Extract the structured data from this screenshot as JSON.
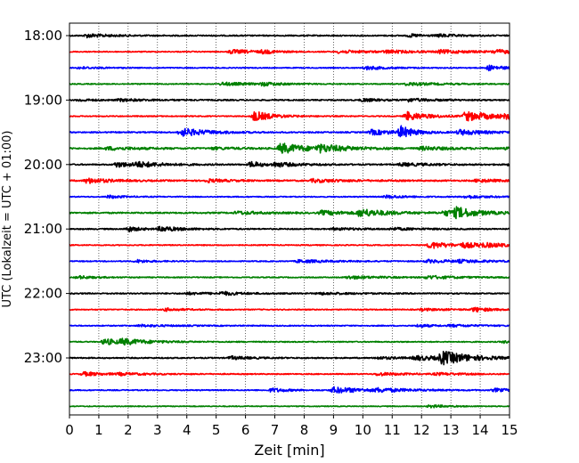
{
  "chart_data": {
    "type": "line",
    "title": "",
    "xlabel": "Zeit  [min]",
    "ylabel": "UTC (Lokalzeit = UTC + 01:00)",
    "xlim": [
      0,
      15
    ],
    "x_ticks": [
      "0",
      "1",
      "2",
      "3",
      "4",
      "5",
      "6",
      "7",
      "8",
      "9",
      "10",
      "11",
      "12",
      "13",
      "14",
      "15"
    ],
    "y_tick_labels": [
      "18:00",
      "19:00",
      "20:00",
      "21:00",
      "22:00",
      "23:00"
    ],
    "y_tick_rows": [
      0,
      4,
      8,
      12,
      16,
      20
    ],
    "row_count": 24,
    "row_interval_min": 15,
    "x_grid": true,
    "colors": [
      "#000000",
      "#ff0000",
      "#0000ff",
      "#008000"
    ],
    "series": [
      {
        "start": "18:00",
        "color": "#000000",
        "noise": 0.12,
        "bursts": [
          [
            0.6,
            3.5,
            0.35
          ],
          [
            11.6,
            6,
            0.3
          ],
          [
            12.6,
            4,
            0.25
          ]
        ]
      },
      {
        "start": "18:15",
        "color": "#ff0000",
        "noise": 0.1,
        "bursts": [
          [
            5.5,
            3,
            0.4
          ],
          [
            6.6,
            7,
            0.3
          ],
          [
            9.2,
            2.5,
            0.3
          ],
          [
            10.8,
            2.5,
            0.25
          ],
          [
            12.6,
            2.5,
            0.3
          ],
          [
            14.5,
            2.5,
            0.35
          ]
        ]
      },
      {
        "start": "18:30",
        "color": "#0000ff",
        "noise": 0.1,
        "bursts": [
          [
            0.35,
            4,
            0.2
          ],
          [
            10.1,
            4,
            0.35
          ],
          [
            14.3,
            5,
            0.5
          ]
        ]
      },
      {
        "start": "18:45",
        "color": "#008000",
        "noise": 0.1,
        "bursts": [
          [
            5.2,
            2.5,
            0.3
          ],
          [
            6.6,
            5,
            0.3
          ],
          [
            11.5,
            2.5,
            0.3
          ]
        ]
      },
      {
        "start": "19:00",
        "color": "#000000",
        "noise": 0.12,
        "bursts": [
          [
            0.35,
            5,
            0.2
          ],
          [
            1.7,
            2.5,
            0.2
          ],
          [
            10.0,
            5,
            0.3
          ],
          [
            11.5,
            3,
            0.3
          ]
        ]
      },
      {
        "start": "19:15",
        "color": "#ff0000",
        "noise": 0.1,
        "bursts": [
          [
            6.3,
            4.5,
            1.0
          ],
          [
            11.5,
            4,
            0.9
          ],
          [
            13.5,
            2.5,
            0.9
          ],
          [
            14.9,
            4,
            0.3
          ]
        ]
      },
      {
        "start": "19:30",
        "color": "#0000ff",
        "noise": 0.12,
        "bursts": [
          [
            3.8,
            3,
            0.8
          ],
          [
            11.3,
            7,
            1.1
          ],
          [
            13.3,
            3,
            0.5
          ],
          [
            10.3,
            3,
            0.5
          ]
        ]
      },
      {
        "start": "19:45",
        "color": "#008000",
        "noise": 0.14,
        "bursts": [
          [
            1.3,
            2.5,
            0.3
          ],
          [
            4.9,
            3,
            0.2
          ],
          [
            7.2,
            3,
            1.0
          ],
          [
            8.5,
            2.5,
            0.6
          ],
          [
            12.0,
            2.5,
            0.3
          ],
          [
            14.9,
            3,
            0.2
          ]
        ]
      },
      {
        "start": "20:00",
        "color": "#000000",
        "noise": 0.12,
        "bursts": [
          [
            1.6,
            3.5,
            0.5
          ],
          [
            2.3,
            3,
            0.4
          ],
          [
            6.2,
            7,
            0.6
          ],
          [
            7.0,
            3,
            0.4
          ],
          [
            11.3,
            2.5,
            0.3
          ],
          [
            15.0,
            4,
            0.2
          ]
        ]
      },
      {
        "start": "20:15",
        "color": "#ff0000",
        "noise": 0.14,
        "bursts": [
          [
            0.6,
            3.5,
            0.5
          ],
          [
            4.7,
            4,
            0.3
          ],
          [
            8.3,
            2.5,
            0.3
          ],
          [
            13.9,
            4,
            0.3
          ]
        ]
      },
      {
        "start": "20:30",
        "color": "#0000ff",
        "noise": 0.1,
        "bursts": [
          [
            1.35,
            6,
            0.3
          ],
          [
            10.8,
            4,
            0.3
          ],
          [
            13.5,
            3.5,
            0.3
          ]
        ]
      },
      {
        "start": "20:45",
        "color": "#008000",
        "noise": 0.14,
        "bursts": [
          [
            5.7,
            3,
            0.3
          ],
          [
            8.6,
            3,
            0.4
          ],
          [
            9.9,
            3,
            0.7
          ],
          [
            12.8,
            2.5,
            0.5
          ],
          [
            13.2,
            5,
            0.8
          ]
        ]
      },
      {
        "start": "21:00",
        "color": "#000000",
        "noise": 0.12,
        "bursts": [
          [
            2.0,
            7,
            0.5
          ],
          [
            3.1,
            4,
            0.5
          ],
          [
            11.0,
            3,
            0.2
          ],
          [
            9.0,
            2.5,
            0.2
          ]
        ]
      },
      {
        "start": "21:15",
        "color": "#ff0000",
        "noise": 0.1,
        "bursts": [
          [
            12.3,
            4,
            0.7
          ],
          [
            13.4,
            2.5,
            0.4
          ],
          [
            14.1,
            2.5,
            0.2
          ]
        ]
      },
      {
        "start": "21:30",
        "color": "#0000ff",
        "noise": 0.1,
        "bursts": [
          [
            2.3,
            6,
            0.3
          ],
          [
            7.8,
            2.5,
            0.3
          ],
          [
            12.2,
            2.5,
            0.3
          ],
          [
            13.3,
            2.5,
            0.2
          ]
        ]
      },
      {
        "start": "21:45",
        "color": "#008000",
        "noise": 0.1,
        "bursts": [
          [
            0.3,
            5,
            0.3
          ],
          [
            9.5,
            2.5,
            0.3
          ],
          [
            12.2,
            2.5,
            0.3
          ]
        ]
      },
      {
        "start": "22:00",
        "color": "#000000",
        "noise": 0.12,
        "bursts": [
          [
            5.2,
            5,
            0.3
          ],
          [
            4.0,
            2.5,
            0.2
          ],
          [
            8.5,
            2.5,
            0.2
          ]
        ]
      },
      {
        "start": "22:15",
        "color": "#ff0000",
        "noise": 0.1,
        "bursts": [
          [
            3.3,
            5,
            0.3
          ],
          [
            13.8,
            5,
            0.4
          ],
          [
            12.0,
            2.5,
            0.2
          ]
        ]
      },
      {
        "start": "22:30",
        "color": "#0000ff",
        "noise": 0.1,
        "bursts": [
          [
            11.9,
            6,
            0.3
          ],
          [
            2.4,
            2.5,
            0.2
          ],
          [
            13.0,
            2.5,
            0.2
          ]
        ]
      },
      {
        "start": "22:45",
        "color": "#008000",
        "noise": 0.1,
        "bursts": [
          [
            1.2,
            4,
            0.6
          ],
          [
            1.8,
            2.5,
            0.4
          ],
          [
            14.8,
            4,
            0.2
          ]
        ]
      },
      {
        "start": "23:00",
        "color": "#000000",
        "noise": 0.12,
        "bursts": [
          [
            12.7,
            3,
            1.2
          ],
          [
            5.5,
            4,
            0.3
          ],
          [
            11.8,
            2.5,
            0.4
          ],
          [
            10.5,
            2.5,
            0.2
          ]
        ]
      },
      {
        "start": "23:15",
        "color": "#ff0000",
        "noise": 0.1,
        "bursts": [
          [
            0.5,
            4,
            0.4
          ],
          [
            1.7,
            2.5,
            0.2
          ],
          [
            10.5,
            3,
            0.3
          ],
          [
            12.5,
            2.5,
            0.2
          ]
        ]
      },
      {
        "start": "23:30",
        "color": "#0000ff",
        "noise": 0.1,
        "bursts": [
          [
            6.9,
            5,
            0.4
          ],
          [
            9.0,
            2.5,
            0.6
          ],
          [
            14.5,
            4,
            0.3
          ],
          [
            10.5,
            2.5,
            0.3
          ]
        ]
      },
      {
        "start": "23:45",
        "color": "#008000",
        "noise": 0.08,
        "bursts": [
          [
            12.3,
            5,
            0.3
          ]
        ]
      }
    ]
  }
}
